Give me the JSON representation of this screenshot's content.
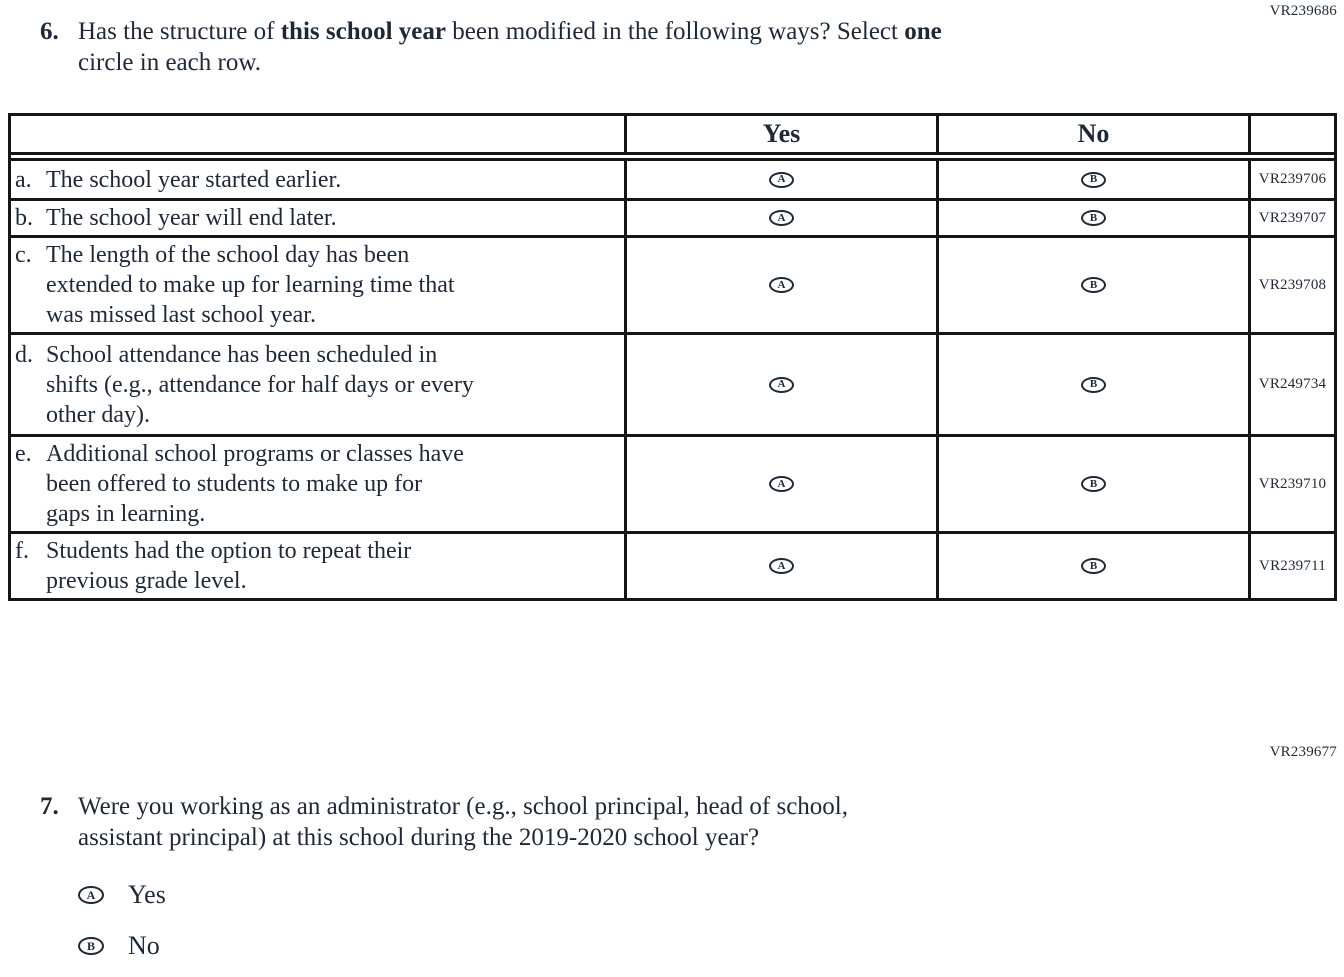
{
  "codes": {
    "q6_block": "VR239686",
    "q7_block": "VR239677"
  },
  "q6": {
    "number": "6.",
    "prompt": {
      "pre": "Has the structure of ",
      "bold1": "this school year",
      "mid": " been modified in the following ways? Select ",
      "bold2": "one",
      "line2": "circle in each row."
    },
    "table": {
      "header": {
        "yes": "Yes",
        "no": "No"
      },
      "rows": [
        {
          "letter": "a.",
          "lines": [
            "The school year started earlier."
          ],
          "yes_letter": "A",
          "no_letter": "B",
          "code": "VR239706"
        },
        {
          "letter": "b.",
          "lines": [
            "The school year will end later."
          ],
          "yes_letter": "A",
          "no_letter": "B",
          "code": "VR239707"
        },
        {
          "letter": "c.",
          "lines": [
            "The length of the school day has been",
            "extended to make up for learning time that",
            "was missed last school year."
          ],
          "yes_letter": "A",
          "no_letter": "B",
          "code": "VR239708"
        },
        {
          "letter": "d.",
          "lines": [
            "School attendance has been scheduled in",
            "shifts (e.g., attendance for half days or every",
            "other day)."
          ],
          "yes_letter": "A",
          "no_letter": "B",
          "code": "VR249734"
        },
        {
          "letter": "e.",
          "lines": [
            "Additional school programs or classes have",
            "been offered to students to make up for",
            "gaps in learning."
          ],
          "yes_letter": "A",
          "no_letter": "B",
          "code": "VR239710"
        },
        {
          "letter": "f.",
          "lines": [
            "Students had the option to repeat their",
            "previous grade level."
          ],
          "yes_letter": "A",
          "no_letter": "B",
          "code": "VR239711"
        }
      ]
    }
  },
  "q7": {
    "number": "7.",
    "line1": "Were you working as an administrator (e.g., school principal, head of school,",
    "line2": "assistant principal) at this school during the 2019-2020 school year?",
    "options": [
      {
        "letter": "A",
        "label": "Yes"
      },
      {
        "letter": "B",
        "label": "No"
      }
    ]
  },
  "colors": {
    "ink": "#1e2836",
    "table_border": "#14161a",
    "background": "#ffffff"
  }
}
